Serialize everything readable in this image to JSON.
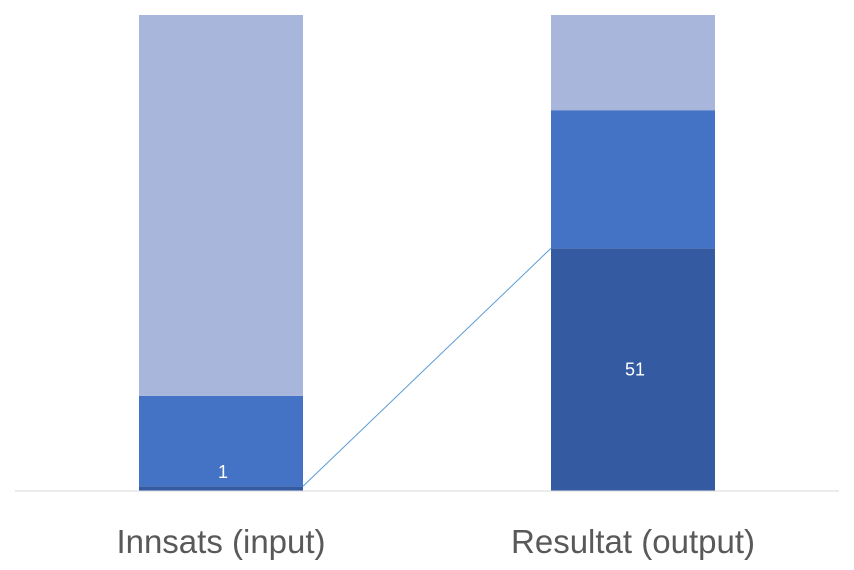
{
  "chart_data": {
    "type": "bar",
    "stacked": true,
    "percent_stacked": true,
    "categories": [
      "Innsats (input)",
      "Resultat (output)"
    ],
    "series": [
      {
        "values": [
          1,
          51
        ],
        "color": "#345aa1",
        "data_labels": [
          "1",
          "51"
        ]
      },
      {
        "values": [
          19,
          29
        ],
        "color": "#4472c4",
        "data_labels": [
          "",
          ""
        ]
      },
      {
        "values": [
          80,
          20
        ],
        "color": "#a9b6dc",
        "data_labels": [
          "",
          ""
        ]
      }
    ],
    "series_lines": {
      "color": "#5b9bd5",
      "between_series": 0
    },
    "ylim": [
      0,
      100
    ],
    "axis_color": "#d9d9d9",
    "grid": false,
    "legend": "none",
    "title": "",
    "xlabel": "",
    "ylabel": ""
  }
}
